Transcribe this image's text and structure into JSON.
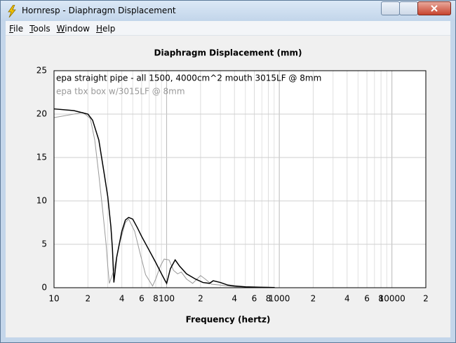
{
  "window": {
    "title": "Hornresp - Diaphragm Displacement",
    "menu": [
      "File",
      "Tools",
      "Window",
      "Help"
    ]
  },
  "chart_data": {
    "type": "line",
    "title": "Diaphragm Displacement (mm)",
    "x_label": "Frequency (hertz)",
    "xscale": "log",
    "xlim": [
      10,
      20000
    ],
    "ylim": [
      0,
      25
    ],
    "grid": true,
    "yticks": [
      0,
      5,
      10,
      15,
      20,
      25
    ],
    "xticks": [
      10,
      {
        "value": 20,
        "label": "2"
      },
      {
        "value": 40,
        "label": "4"
      },
      {
        "value": 60,
        "label": "6"
      },
      {
        "value": 80,
        "label": "8"
      },
      100,
      {
        "value": 200,
        "label": "2"
      },
      {
        "value": 400,
        "label": "4"
      },
      {
        "value": 600,
        "label": "6"
      },
      {
        "value": 800,
        "label": "8"
      },
      1000,
      {
        "value": 2000,
        "label": "2"
      },
      {
        "value": 4000,
        "label": "4"
      },
      {
        "value": 6000,
        "label": "6"
      },
      {
        "value": 8000,
        "label": "8"
      },
      10000,
      {
        "value": 20000,
        "label": "2"
      }
    ],
    "xminorticks": [
      30,
      50,
      70,
      90,
      300,
      500,
      700,
      900,
      3000,
      5000,
      7000,
      9000
    ],
    "series": [
      {
        "name": "epa straight pipe - all 1500, 4000cm^2 mouth 3015LF @ 8mm",
        "color": "#000000",
        "x": [
          10,
          15,
          20,
          22,
          25,
          28,
          30,
          32,
          33,
          34,
          36,
          40,
          43,
          46,
          50,
          55,
          60,
          70,
          80,
          90,
          97,
          100,
          108,
          119,
          130,
          150,
          180,
          210,
          240,
          259,
          300,
          350,
          400,
          500,
          700,
          910
        ],
        "values": [
          20.6,
          20.4,
          20.0,
          19.3,
          17,
          13,
          10.5,
          7,
          4.5,
          0.6,
          3.5,
          6.5,
          7.8,
          8.1,
          7.9,
          6.9,
          5.9,
          4.3,
          2.9,
          1.6,
          0.8,
          0.5,
          2.2,
          3.2,
          2.5,
          1.6,
          1.0,
          0.6,
          0.5,
          0.8,
          0.6,
          0.3,
          0.2,
          0.1,
          0.05,
          0.02
        ]
      },
      {
        "name": "epa tbx box w/3015LF @ 8mm",
        "color": "#999999",
        "x": [
          10,
          15,
          18,
          21,
          23,
          25,
          27,
          29,
          30,
          31,
          34,
          38,
          43,
          46,
          52,
          58,
          65,
          75,
          80,
          88,
          95,
          105,
          115,
          125,
          135,
          150,
          170,
          200,
          220,
          250,
          300,
          400,
          600,
          900
        ],
        "values": [
          19.6,
          20.0,
          20.2,
          19.5,
          17,
          13,
          9,
          5,
          2.5,
          0.5,
          2,
          5,
          7.5,
          7.9,
          6.5,
          4,
          1.5,
          0.2,
          1,
          2.5,
          3.3,
          3.2,
          2,
          1.6,
          1.8,
          1,
          0.5,
          1.4,
          1,
          0.4,
          0.3,
          0.1,
          0.05,
          0.02
        ]
      }
    ]
  }
}
